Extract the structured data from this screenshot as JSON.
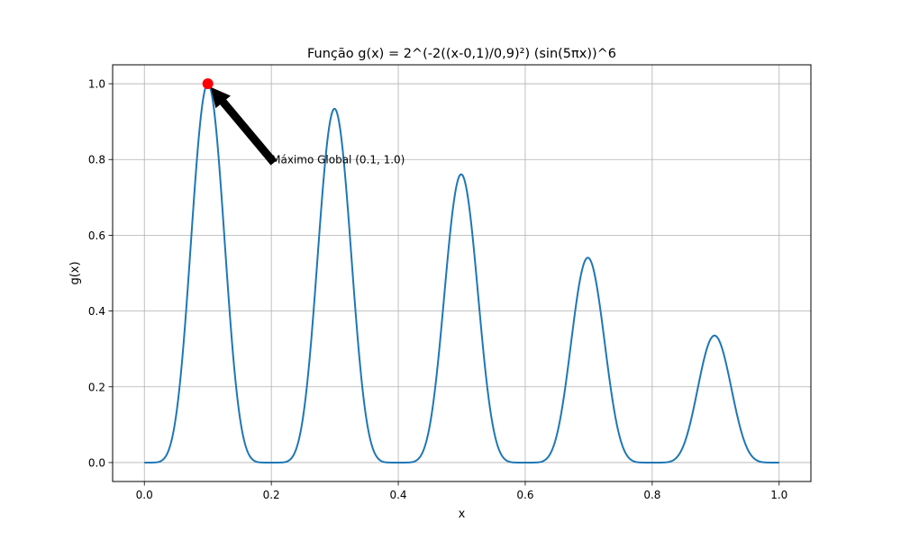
{
  "chart_data": {
    "type": "line",
    "title": "Função g(x) = 2^(-2((x-0,1)/0,9)²) (sin(5πx))^6",
    "xlabel": "x",
    "ylabel": "g(x)",
    "xlim": [
      -0.05,
      1.05
    ],
    "ylim": [
      -0.05,
      1.05
    ],
    "xticks": [
      "0.0",
      "0.2",
      "0.4",
      "0.6",
      "0.8",
      "1.0"
    ],
    "yticks": [
      "0.0",
      "0.2",
      "0.4",
      "0.6",
      "0.8",
      "1.0"
    ],
    "grid": true,
    "series": [
      {
        "color": "#1f77b4",
        "function": "2^(-2((x-0.1)/0.9)^2) * sin(5*pi*x)^6",
        "x_range": [
          0,
          1
        ],
        "peaks": [
          {
            "x": 0.1,
            "y": 1.0
          },
          {
            "x": 0.3,
            "y": 0.934
          },
          {
            "x": 0.5,
            "y": 0.76
          },
          {
            "x": 0.7,
            "y": 0.54
          },
          {
            "x": 0.9,
            "y": 0.336
          }
        ]
      }
    ],
    "marker": {
      "x": 0.1,
      "y": 1.0,
      "color": "#ff0000"
    },
    "annotation": {
      "text": "Máximo Global (0.1, 1.0)",
      "point": {
        "x": 0.1,
        "y": 1.0
      },
      "text_at": {
        "x": 0.2,
        "y": 0.8
      },
      "arrow_color": "#000000"
    }
  }
}
